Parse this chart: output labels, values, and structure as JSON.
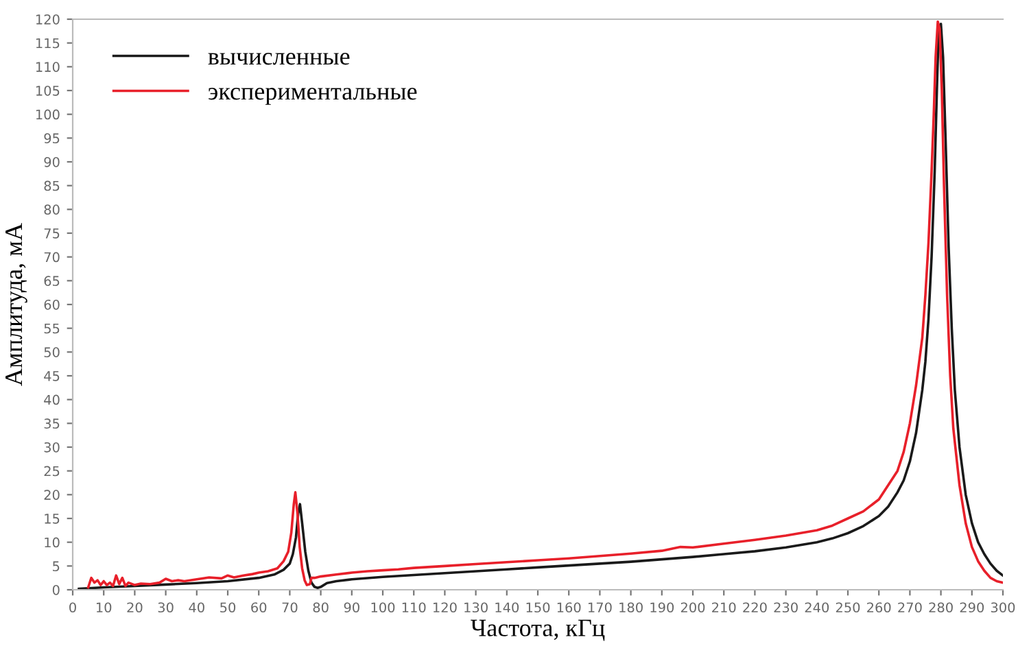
{
  "chart_data": {
    "type": "line",
    "xlabel": "Частота, кГц",
    "ylabel": "Амплитуда, мА",
    "xlim": [
      0,
      300
    ],
    "ylim": [
      0,
      120
    ],
    "xticks": [
      0,
      10,
      20,
      30,
      40,
      50,
      60,
      70,
      80,
      90,
      100,
      110,
      120,
      130,
      140,
      150,
      160,
      170,
      180,
      190,
      200,
      210,
      220,
      230,
      240,
      250,
      260,
      270,
      280,
      290,
      300
    ],
    "yticks": [
      0,
      5,
      10,
      15,
      20,
      25,
      30,
      35,
      40,
      45,
      50,
      55,
      60,
      65,
      70,
      75,
      80,
      85,
      90,
      95,
      100,
      105,
      110,
      115,
      120
    ],
    "grid": false,
    "legend": "top left",
    "marker": "none",
    "line_style": "solid",
    "series": [
      {
        "name": "вычисленные",
        "color": "#1a1a1a",
        "x": [
          2,
          10,
          20,
          30,
          40,
          50,
          60,
          65,
          68,
          70,
          71,
          72,
          72.7,
          73.3,
          74,
          75,
          76,
          77,
          78,
          79,
          80,
          82,
          85,
          90,
          100,
          110,
          120,
          130,
          140,
          150,
          160,
          170,
          180,
          190,
          200,
          210,
          220,
          230,
          240,
          245,
          250,
          255,
          260,
          263,
          266,
          268,
          270,
          272,
          274,
          275,
          276,
          277,
          278,
          278.7,
          279.3,
          280,
          280.7,
          281.5,
          282.5,
          283.5,
          284.5,
          286,
          288,
          290,
          292,
          294,
          296,
          298,
          300
        ],
        "values": [
          0.2,
          0.5,
          0.8,
          1.1,
          1.4,
          1.8,
          2.5,
          3.2,
          4.2,
          5.5,
          7.5,
          11,
          16,
          18,
          14,
          8,
          4,
          1.5,
          0.6,
          0.4,
          0.6,
          1.4,
          1.8,
          2.2,
          2.7,
          3.1,
          3.5,
          3.9,
          4.3,
          4.7,
          5.1,
          5.5,
          5.9,
          6.4,
          6.9,
          7.5,
          8.1,
          8.9,
          10,
          10.8,
          11.9,
          13.4,
          15.5,
          17.5,
          20.5,
          23,
          27,
          33,
          42,
          48,
          57,
          70,
          88,
          105,
          118,
          119,
          112,
          95,
          72,
          55,
          42,
          30,
          20,
          14,
          10,
          7.5,
          5.5,
          4,
          3
        ]
      },
      {
        "name": "экспериментальные",
        "color": "#e8202a",
        "x": [
          5,
          6,
          7,
          8,
          9,
          10,
          11,
          12,
          13,
          14,
          15,
          16,
          17,
          18,
          20,
          22,
          25,
          28,
          30,
          32,
          34,
          36,
          40,
          44,
          48,
          50,
          52,
          55,
          58,
          60,
          63,
          66,
          68,
          69.5,
          70.5,
          71.3,
          71.8,
          72.5,
          73.2,
          74,
          74.8,
          75.5,
          76.5,
          77,
          78,
          80,
          85,
          90,
          95,
          100,
          105,
          110,
          120,
          130,
          140,
          150,
          160,
          170,
          180,
          190,
          196,
          200,
          210,
          220,
          230,
          240,
          245,
          250,
          255,
          260,
          263,
          266,
          268,
          270,
          272,
          274,
          275,
          276,
          277,
          277.7,
          278.3,
          279,
          279.6,
          280.3,
          281,
          282,
          283,
          284,
          286,
          288,
          290,
          292,
          294,
          296,
          298,
          300
        ],
        "values": [
          0.5,
          2.5,
          1.5,
          2,
          1,
          1.8,
          1,
          1.5,
          0.8,
          3,
          1.2,
          2.5,
          0.8,
          1.5,
          1,
          1.3,
          1.2,
          1.5,
          2.3,
          1.8,
          2,
          1.8,
          2.2,
          2.6,
          2.4,
          3,
          2.6,
          3,
          3.3,
          3.6,
          3.9,
          4.5,
          6,
          8,
          12,
          18,
          20.5,
          16,
          9,
          4.5,
          2,
          1,
          1.2,
          2.5,
          2.5,
          2.8,
          3.2,
          3.6,
          3.9,
          4.1,
          4.3,
          4.6,
          5,
          5.4,
          5.8,
          6.2,
          6.6,
          7.1,
          7.6,
          8.2,
          9,
          8.9,
          9.7,
          10.5,
          11.4,
          12.5,
          13.5,
          15,
          16.5,
          19,
          22,
          25,
          29,
          35,
          43,
          53,
          62,
          73,
          88,
          100,
          112,
          119.5,
          118,
          105,
          85,
          62,
          45,
          34,
          22,
          14,
          9,
          6,
          4,
          2.5,
          1.8,
          1.5
        ]
      }
    ]
  }
}
